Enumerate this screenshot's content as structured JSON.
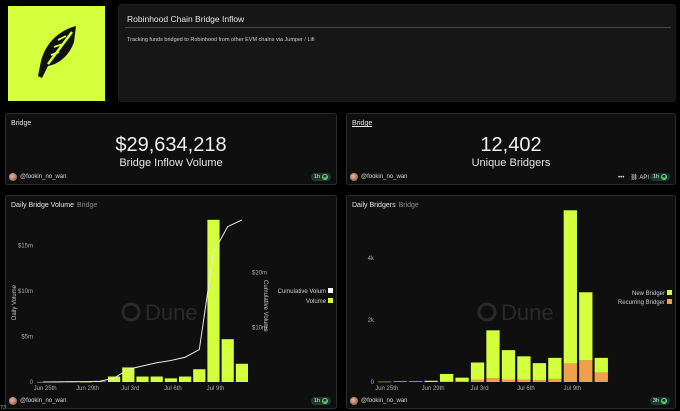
{
  "header": {
    "title": "Robinhood Chain Bridge Inflow",
    "description": "Tracking funds bridged to Robinhood from other EVM chains via Jumper / Lifi",
    "logo_icon": "feather-icon",
    "brand_color": "#d4ff3c"
  },
  "counter1": {
    "title": "Bridge",
    "value": "$29,634,218",
    "label": "Bridge Inflow Volume",
    "author": "@fookin_no_wan",
    "refresh": "1h"
  },
  "counter2": {
    "title": "Bridge",
    "value": "12,402",
    "label": "Unique Bridgers",
    "author": "@fookin_no_wan",
    "refresh": "1h",
    "more_icon": "more-dots-icon",
    "api_label": "API"
  },
  "chart1_panel": {
    "title": "Daily Bridge Volume",
    "subtitle": "Bridge",
    "author": "@fookin_no_wan",
    "refresh": "1h",
    "watermark": "Dune"
  },
  "chart2_panel": {
    "title": "Daily Bridgers",
    "subtitle": "Bridge",
    "author": "@fookin_no_wan",
    "refresh": "3h",
    "watermark": "Dune"
  },
  "corner_text": "73",
  "chart_data": [
    {
      "type": "bar",
      "ylabel": "Daily Volume",
      "y2label": "Cumulative Volume",
      "ylim": [
        0,
        18000000
      ],
      "y2lim": [
        0,
        30000000
      ],
      "yticks": [
        "0",
        "$5m",
        "$10m",
        "$15m"
      ],
      "y2ticks": [
        "$10m",
        "$20m"
      ],
      "xticks": [
        "Jun 25th",
        "Jun 29th",
        "Jul 3rd",
        "Jul 6th",
        "Jul 9th"
      ],
      "legend": [
        "Cumulative Volum",
        "Volume"
      ],
      "legend_placement": "right",
      "colors": {
        "bar": "#d4ff3c",
        "line": "#e8e8e8"
      },
      "series": [
        {
          "name": "Volume",
          "values": [
            10000,
            20000,
            30000,
            20000,
            50000,
            600000,
            1600000,
            600000,
            600000,
            400000,
            600000,
            1400000,
            17800000,
            4700000,
            2000000
          ]
        },
        {
          "name": "Cumulative Volum",
          "values": [
            10000,
            30000,
            60000,
            80000,
            130000,
            730000,
            2330000,
            2930000,
            3530000,
            3930000,
            4530000,
            5930000,
            23730000,
            28430000,
            29634218
          ]
        }
      ]
    },
    {
      "type": "bar",
      "ylim": [
        0,
        5300
      ],
      "yticks": [
        "0",
        "2k",
        "4k"
      ],
      "xticks": [
        "Jun 25th",
        "Jun 29th",
        "Jul 3rd",
        "Jul 6th",
        "Jul 9th"
      ],
      "legend": [
        "New Bridger",
        "Recurring Bridger"
      ],
      "legend_placement": "right",
      "colors": {
        "new": "#d4ff3c",
        "recurring": "#f0a04a"
      },
      "series": [
        {
          "name": "New Bridger",
          "values": [
            10,
            20,
            20,
            40,
            250,
            120,
            550,
            1550,
            950,
            750,
            550,
            680,
            4950,
            2200,
            480
          ]
        },
        {
          "name": "Recurring Bridger",
          "values": [
            0,
            0,
            0,
            0,
            10,
            20,
            80,
            120,
            80,
            80,
            60,
            100,
            600,
            700,
            300
          ]
        }
      ]
    }
  ]
}
